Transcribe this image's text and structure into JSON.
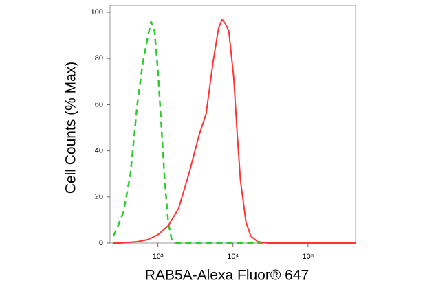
{
  "chart_data": {
    "type": "line",
    "xscale": "log",
    "xlabel": "RAB5A-Alexa Fluor® 647",
    "ylabel": "Cell Counts (% Max)",
    "xlim": [
      230,
      430000
    ],
    "ylim": [
      0,
      103
    ],
    "xticks": [
      {
        "value": 1000,
        "label": "10³"
      },
      {
        "value": 10000,
        "label": "10⁴"
      },
      {
        "value": 100000,
        "label": "10⁵"
      }
    ],
    "yticks": [
      0,
      20,
      40,
      60,
      80,
      100
    ],
    "series": [
      {
        "color": "#2fcc2f",
        "dash": true,
        "x": [
          254,
          282,
          348,
          430,
          530,
          628,
          728,
          810,
          900,
          1000,
          1111,
          1235,
          1373,
          1526,
          1695,
          5000,
          100000,
          430000
        ],
        "values": [
          3,
          6,
          13.5,
          30,
          60,
          78,
          89,
          96,
          92,
          75,
          51,
          27,
          9,
          1.5,
          0,
          0,
          0,
          0
        ]
      },
      {
        "color": "#ff3333",
        "dash": false,
        "x": [
          254,
          314,
          530,
          728,
          1000,
          1373,
          1885,
          2588,
          3550,
          4384,
          5410,
          6410,
          7150,
          7940,
          8800,
          10230,
          11370,
          12600,
          14900,
          17300,
          21400,
          29300,
          430000
        ],
        "values": [
          0,
          0,
          0.6,
          1.5,
          3.6,
          7.5,
          15,
          30,
          47,
          56,
          78,
          93,
          97,
          95,
          92,
          72,
          48,
          27,
          9,
          3,
          0.6,
          0,
          0
        ]
      }
    ]
  }
}
